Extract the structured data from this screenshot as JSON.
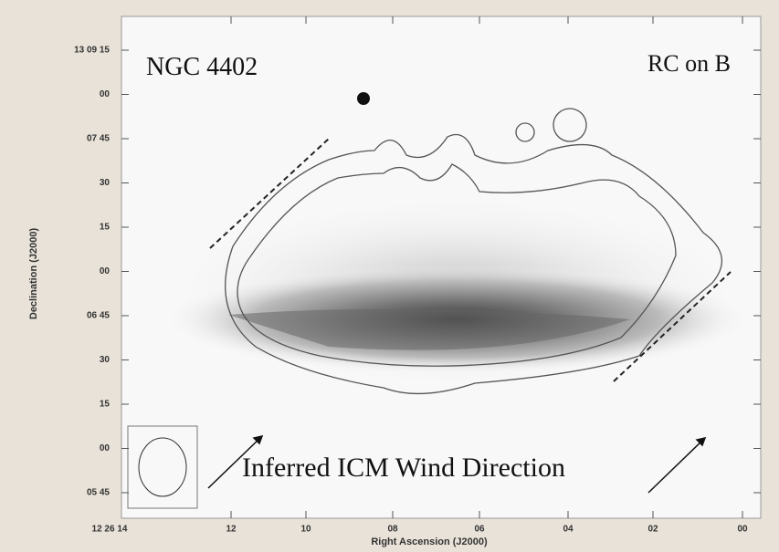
{
  "figure": {
    "title": "NGC 4402",
    "label": "RC on B",
    "annotation": "Inferred ICM Wind Direction",
    "y_axis_title": "Declination (J2000)",
    "x_axis_title": "Right Ascension (J2000)",
    "y_tick_labels": [
      "13 09 15",
      "00",
      "07 45",
      "30",
      "15",
      "00",
      "06 45",
      "30",
      "15",
      "00",
      "05 45"
    ],
    "x_tick_labels": [
      "12 26 14",
      "12",
      "10",
      "08",
      "06",
      "04",
      "02",
      "00"
    ]
  }
}
